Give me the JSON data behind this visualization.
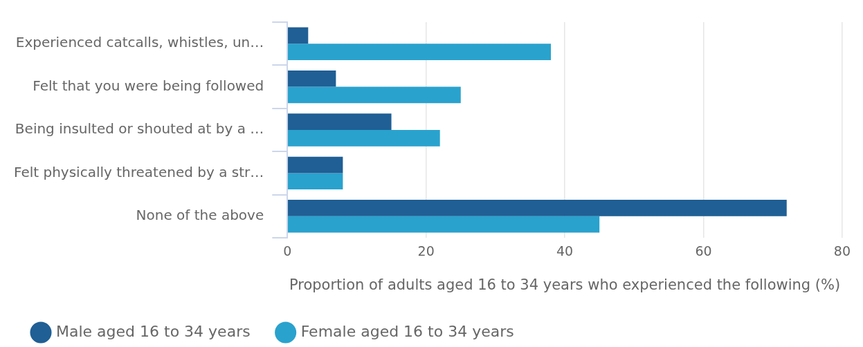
{
  "chart_data": {
    "type": "bar",
    "orientation": "horizontal",
    "xlabel": "Proportion of adults aged 16 to 34 years who experienced the following (%)",
    "categories": [
      "Experienced catcalls, whistles, un…",
      "Felt that you were being followed",
      "Being insulted or shouted at by a …",
      "Felt physically threatened by a str…",
      "None of the above"
    ],
    "series": [
      {
        "name": "Male aged 16 to 34 years",
        "color": "#1f5f95",
        "values": [
          3,
          7,
          15,
          8,
          72
        ]
      },
      {
        "name": "Female aged 16 to 34 years",
        "color": "#29a2ce",
        "values": [
          38,
          25,
          22,
          8,
          45
        ]
      }
    ],
    "xlim": [
      0,
      80
    ],
    "xticks": [
      0,
      20,
      40,
      60,
      80
    ],
    "grid": "x",
    "legend": "bottom left"
  }
}
